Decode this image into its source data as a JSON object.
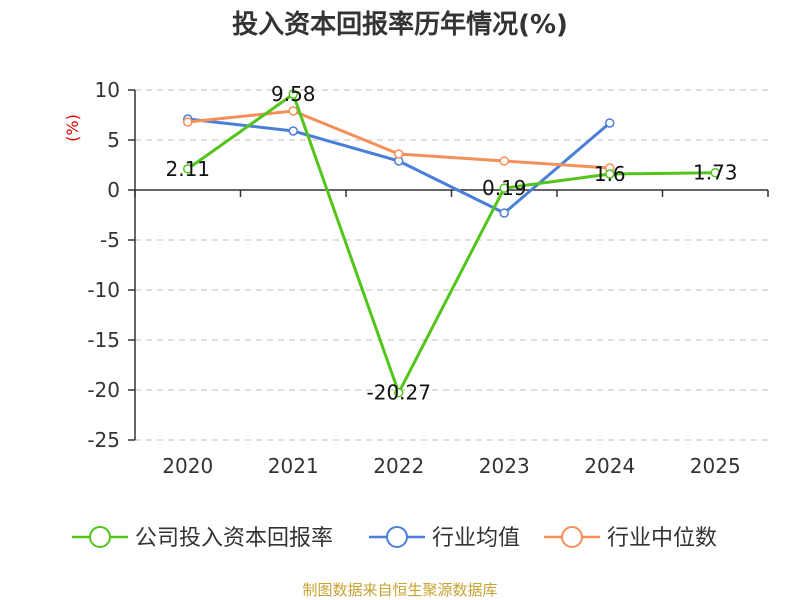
{
  "chart_data": {
    "type": "line",
    "title": "投入资本回报率历年情况(%)",
    "ylabel": "(%)",
    "xlabel": "",
    "categories": [
      "2020",
      "2021",
      "2022",
      "2023",
      "2024",
      "2025"
    ],
    "ylim": [
      -25,
      10
    ],
    "yticks": [
      10,
      5,
      0,
      -5,
      -10,
      -15,
      -20,
      -25
    ],
    "grid": true,
    "legend_position": "bottom",
    "series": [
      {
        "name": "公司投入资本回报率",
        "color": "#52c41a",
        "values": [
          2.11,
          9.58,
          -20.27,
          0.19,
          1.6,
          1.73
        ],
        "labels": [
          "2.11",
          "9.58",
          "-20.27",
          "0.19",
          "1.6",
          "1.73"
        ]
      },
      {
        "name": "行业均值",
        "color": "#4a7fd9",
        "values": [
          7.1,
          5.9,
          2.9,
          -2.3,
          6.7,
          null
        ]
      },
      {
        "name": "行业中位数",
        "color": "#f5905a",
        "values": [
          6.8,
          7.9,
          3.6,
          2.9,
          2.2,
          null
        ]
      }
    ]
  },
  "source_text": "制图数据来自恒生聚源数据库"
}
